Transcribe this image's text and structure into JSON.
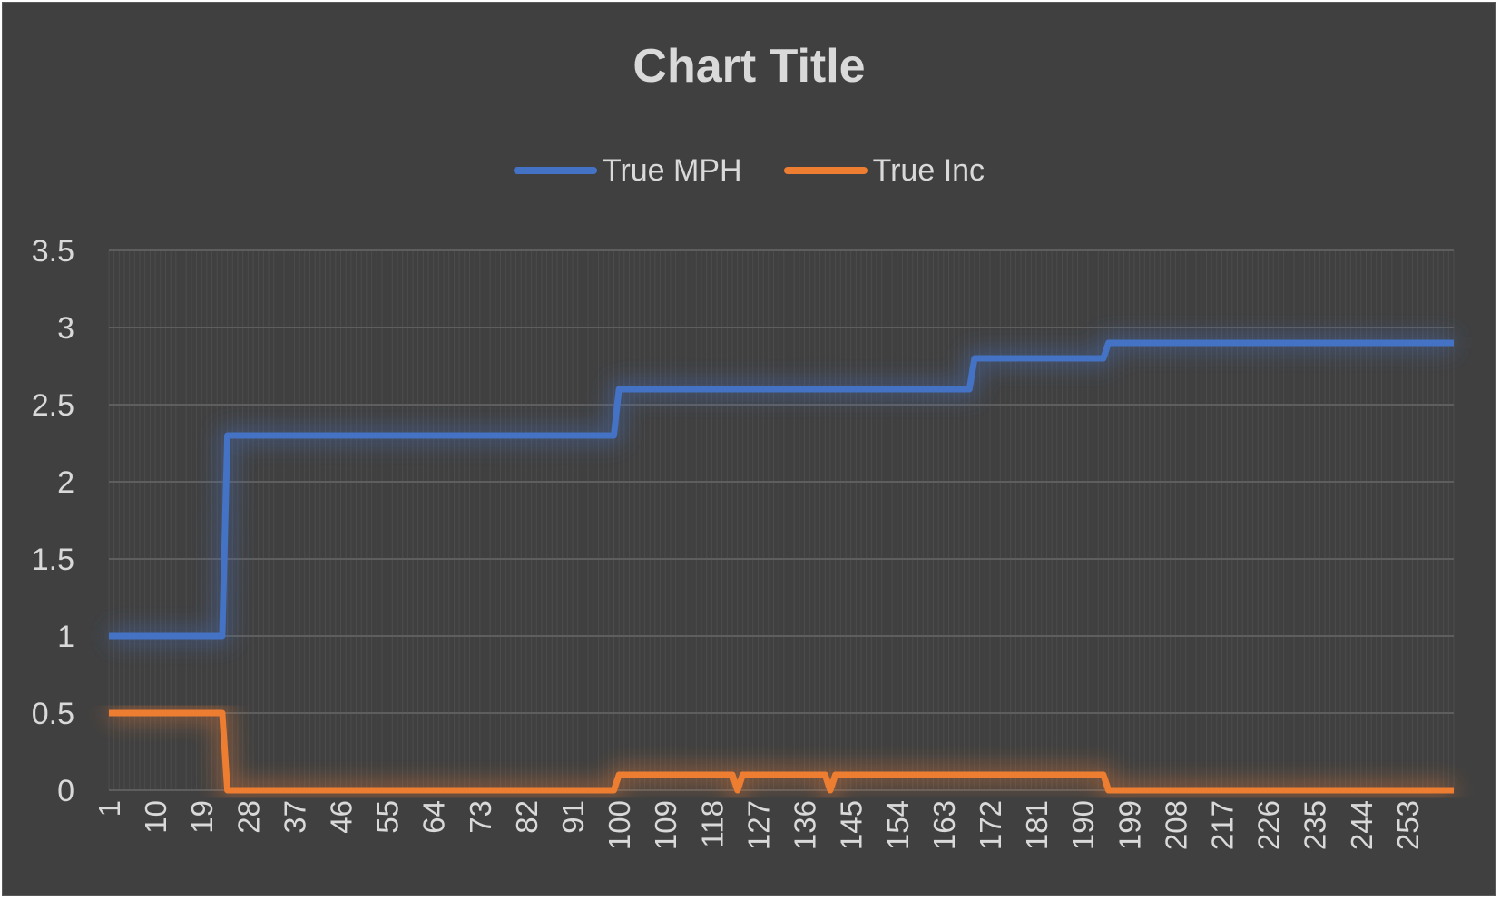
{
  "chart_data": {
    "type": "line",
    "title": "Chart Title",
    "xlabel": "",
    "ylabel": "",
    "ylim": [
      0,
      3.5
    ],
    "yticks": [
      "0",
      "0.5",
      "1",
      "1.5",
      "2",
      "2.5",
      "3",
      "3.5"
    ],
    "x_range": [
      1,
      262
    ],
    "xticks": [
      "1",
      "10",
      "19",
      "28",
      "37",
      "46",
      "55",
      "64",
      "73",
      "82",
      "91",
      "100",
      "109",
      "118",
      "127",
      "136",
      "145",
      "154",
      "163",
      "172",
      "181",
      "190",
      "199",
      "208",
      "217",
      "226",
      "235",
      "244",
      "253"
    ],
    "grid": true,
    "legend_position": "top",
    "series": [
      {
        "name": "True MPH",
        "color": "#4472c4",
        "points": [
          [
            1,
            1
          ],
          [
            23,
            1
          ],
          [
            24,
            2.3
          ],
          [
            99,
            2.3
          ],
          [
            100,
            2.6
          ],
          [
            168,
            2.6
          ],
          [
            169,
            2.8
          ],
          [
            194,
            2.8
          ],
          [
            195,
            2.9
          ],
          [
            262,
            2.9
          ]
        ]
      },
      {
        "name": "True Inc",
        "color": "#ed7d31",
        "points": [
          [
            1,
            0.5
          ],
          [
            23,
            0.5
          ],
          [
            24,
            0
          ],
          [
            99,
            0
          ],
          [
            100,
            0.1
          ],
          [
            122,
            0.1
          ],
          [
            123,
            0
          ],
          [
            124,
            0.1
          ],
          [
            140,
            0.1
          ],
          [
            141,
            0
          ],
          [
            142,
            0.1
          ],
          [
            194,
            0.1
          ],
          [
            195,
            0
          ],
          [
            262,
            0
          ]
        ]
      }
    ]
  }
}
